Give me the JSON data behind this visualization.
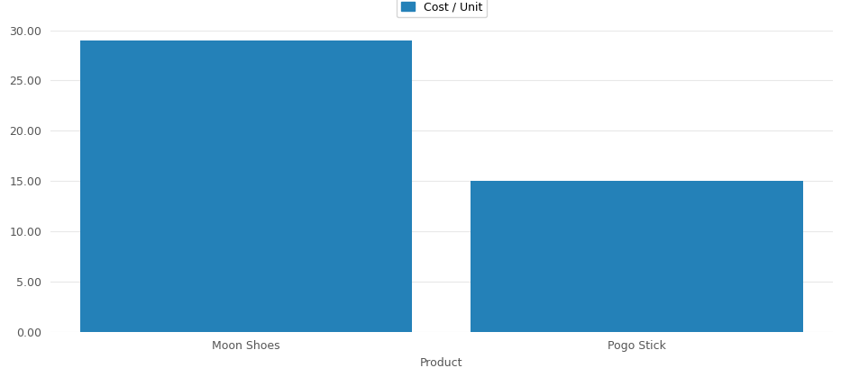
{
  "categories": [
    "Moon Shoes",
    "Pogo Stick"
  ],
  "values": [
    29.0,
    15.0
  ],
  "bar_color": "#2481b8",
  "xlabel": "Product",
  "legend_label": "Cost / Unit",
  "ylim": [
    0,
    30
  ],
  "yticks": [
    0,
    5,
    10,
    15,
    20,
    25,
    30
  ],
  "ytick_labels": [
    "0.00",
    "5.00",
    "10.00",
    "15.00",
    "20.00",
    "25.00",
    "30.00"
  ],
  "background_color": "#ffffff",
  "grid_color": "#e8e8e8",
  "tick_fontsize": 9,
  "label_fontsize": 9,
  "legend_fontsize": 9
}
